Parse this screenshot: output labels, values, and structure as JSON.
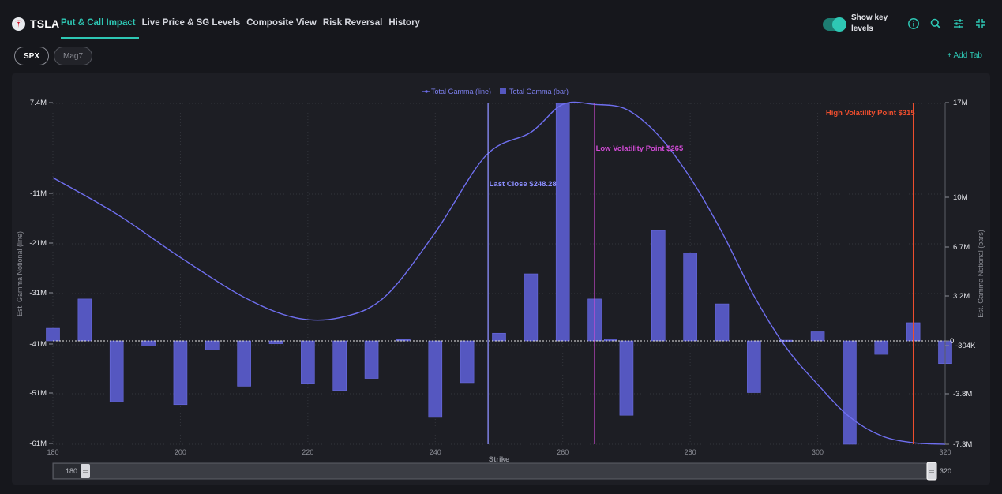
{
  "header": {
    "ticker": "TSLA",
    "tabs": [
      {
        "label": "Put & Call Impact",
        "active": true
      },
      {
        "label": "Live Price & SG Levels",
        "active": false
      },
      {
        "label": "Composite View",
        "active": false
      },
      {
        "label": "Risk Reversal",
        "active": false
      },
      {
        "label": "History",
        "active": false
      }
    ],
    "toggle_label": "Show key levels",
    "toggle_on": true,
    "icons": [
      "info-icon",
      "search-icon",
      "sliders-icon",
      "collapse-icon"
    ]
  },
  "subtabs": [
    {
      "label": "SPX",
      "active": true
    },
    {
      "label": "Mag7",
      "active": false
    }
  ],
  "add_tab_label": "+ Add Tab",
  "colors": {
    "accent": "#2ec7b4",
    "line": "#6f6ff0",
    "bar": "#5557c0",
    "last_close": "#8c8fff",
    "low_vol": "#d24bd6",
    "high_vol": "#ee4e2e"
  },
  "chart_data": {
    "type": "bar",
    "legend": [
      "Total Gamma (line)",
      "Total Gamma (bar)"
    ],
    "legend_position": "top-center",
    "xlabel": "Strike",
    "ylabel_left": "Est. Gamma Notional (line)",
    "ylabel_right": "Est. Gamma Notional (bars)",
    "xlim": [
      180,
      320
    ],
    "x_ticks": [
      "180",
      "200",
      "220",
      "240",
      "260",
      "280",
      "300",
      "320"
    ],
    "y_left_ticks": [
      "7.4M",
      "-11M",
      "-21M",
      "-31M",
      "-41M",
      "-51M",
      "-61M"
    ],
    "y_right_ticks": [
      "17M",
      "10M",
      "6.7M",
      "3.2M",
      "0",
      "-304K",
      "-3.8M",
      "-7.3M"
    ],
    "grid": true,
    "series": [
      {
        "name": "Total Gamma (bar)",
        "x": [
          180,
          185,
          190,
          195,
          200,
          205,
          210,
          215,
          220,
          225,
          230,
          235,
          240,
          245,
          250,
          255,
          260,
          265,
          267.5,
          270,
          275,
          280,
          285,
          290,
          295,
          300,
          305,
          310,
          315,
          320
        ],
        "values": [
          0.9,
          3.0,
          -4.3,
          -0.35,
          -4.5,
          -0.65,
          -3.2,
          -0.2,
          -3.0,
          -3.5,
          -2.65,
          0.1,
          -5.4,
          -2.95,
          0.55,
          4.8,
          17.0,
          3.0,
          0.15,
          -5.25,
          7.9,
          6.3,
          2.65,
          -3.65,
          0.05,
          0.65,
          -7.3,
          -0.95,
          1.3,
          -1.6
        ]
      },
      {
        "name": "Total Gamma (line)",
        "x": [
          180,
          190,
          200,
          210,
          218,
          225,
          232,
          240,
          248,
          255,
          260,
          265,
          270,
          275,
          280,
          285,
          290,
          295,
          300,
          305,
          310,
          315,
          320
        ],
        "values": [
          -7.5,
          -14.8,
          -23.5,
          -31.5,
          -35.6,
          -35.6,
          -31.5,
          -18.5,
          -3.0,
          1.6,
          7.2,
          7.2,
          6.2,
          1.0,
          -7.5,
          -18.5,
          -31.2,
          -41.5,
          -49.0,
          -55.5,
          -59.3,
          -60.7,
          -61.0
        ]
      }
    ],
    "annotations": [
      {
        "label": "Last Close $248.28",
        "x": 248.28
      },
      {
        "label": "Low Volatility Point $265",
        "x": 265
      },
      {
        "label": "High Volatility Point $315",
        "x": 315
      }
    ],
    "slider": {
      "min_label": "180",
      "max_label": "320"
    }
  }
}
